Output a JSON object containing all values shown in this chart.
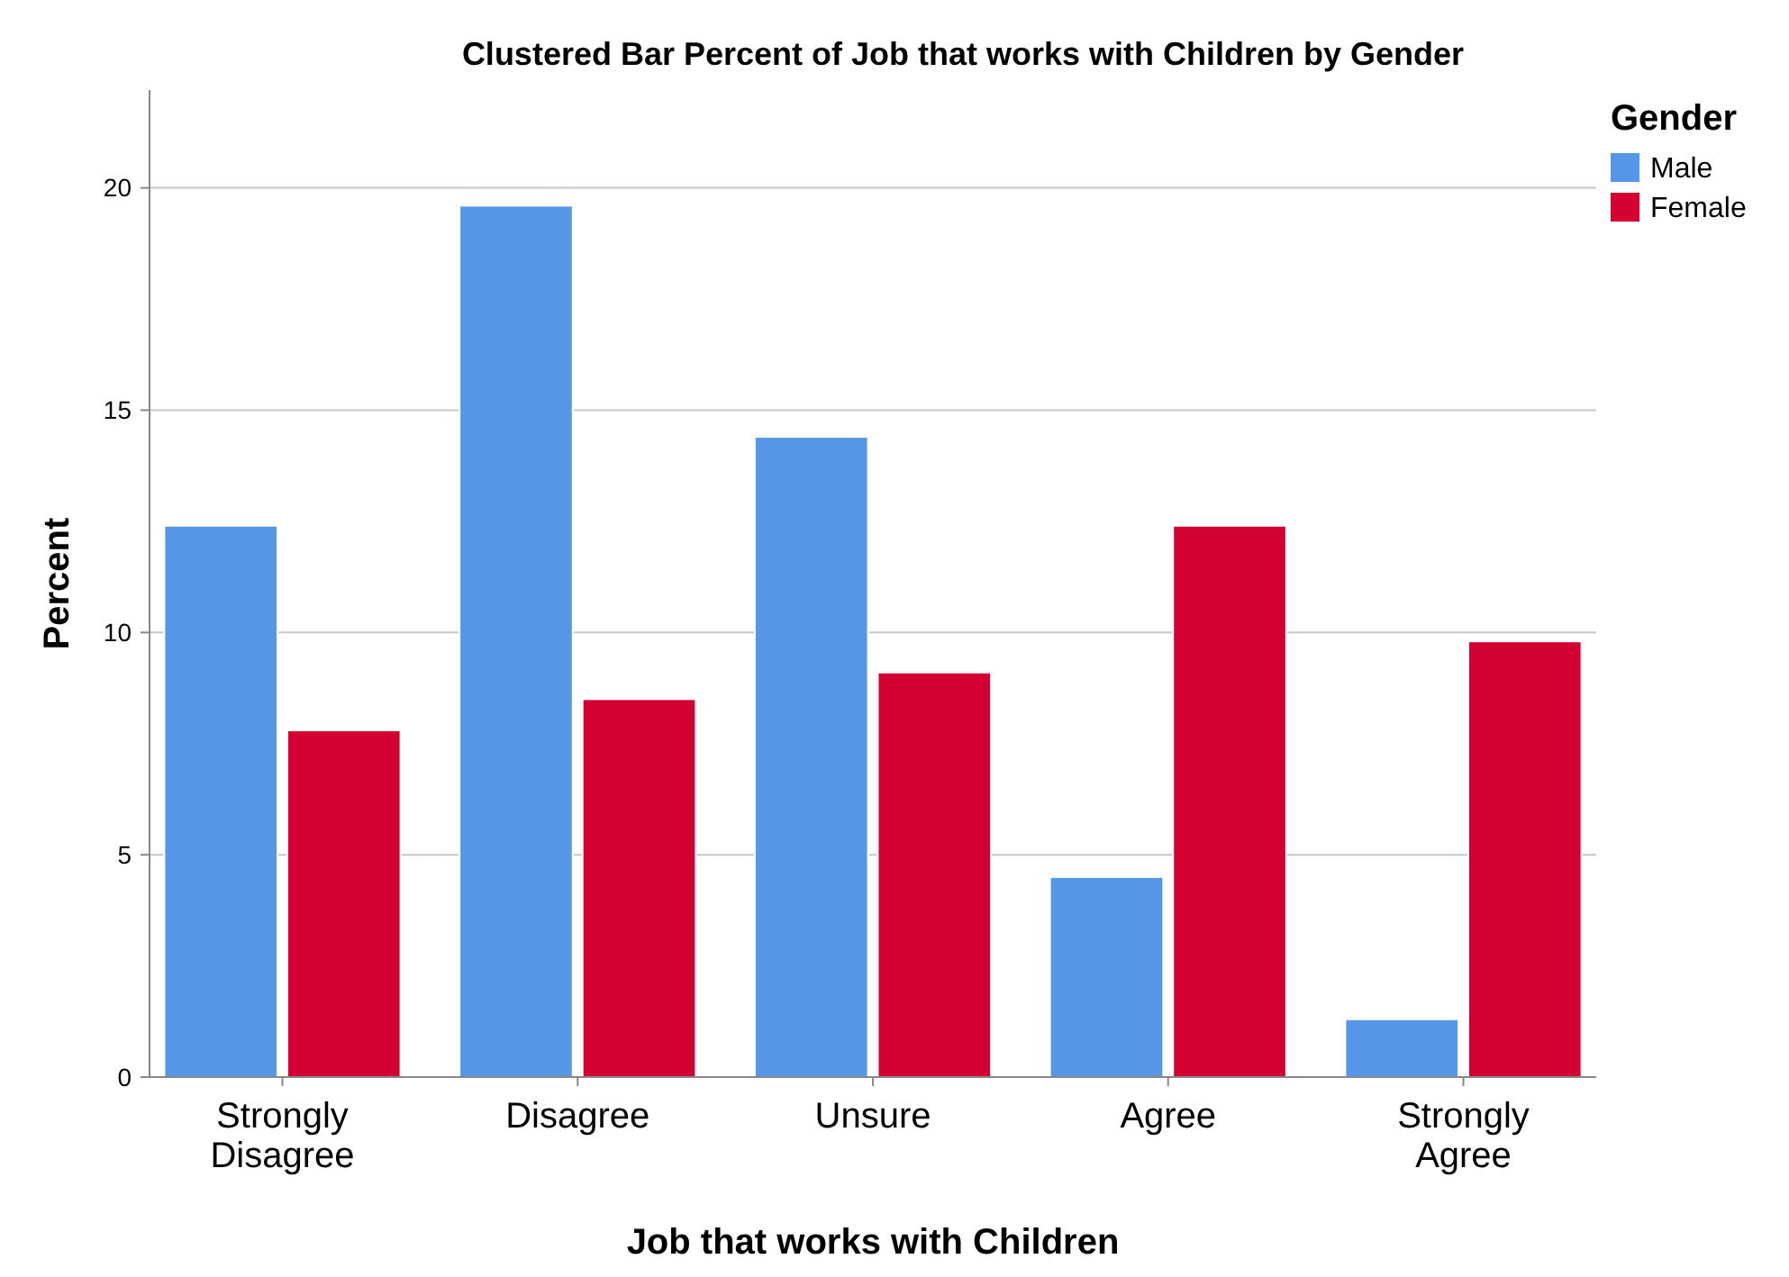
{
  "chart_data": {
    "type": "bar",
    "title": "Clustered Bar Percent of Job that works with Children by Gender",
    "xlabel": "Job that works with Children",
    "ylabel": "Percent",
    "legend_title": "Gender",
    "categories": [
      "Strongly Disagree",
      "Disagree",
      "Unsure",
      "Agree",
      "Strongly Agree"
    ],
    "series": [
      {
        "name": "Male",
        "color": "#5596e6",
        "values": [
          12.4,
          19.6,
          14.4,
          4.5,
          1.3
        ]
      },
      {
        "name": "Female",
        "color": "#d50032",
        "values": [
          7.8,
          8.5,
          9.1,
          12.4,
          9.8
        ]
      }
    ],
    "ylim": [
      0,
      22.2
    ],
    "yticks": [
      0,
      5,
      10,
      15,
      20
    ],
    "grid": "y",
    "legend": "top right"
  }
}
